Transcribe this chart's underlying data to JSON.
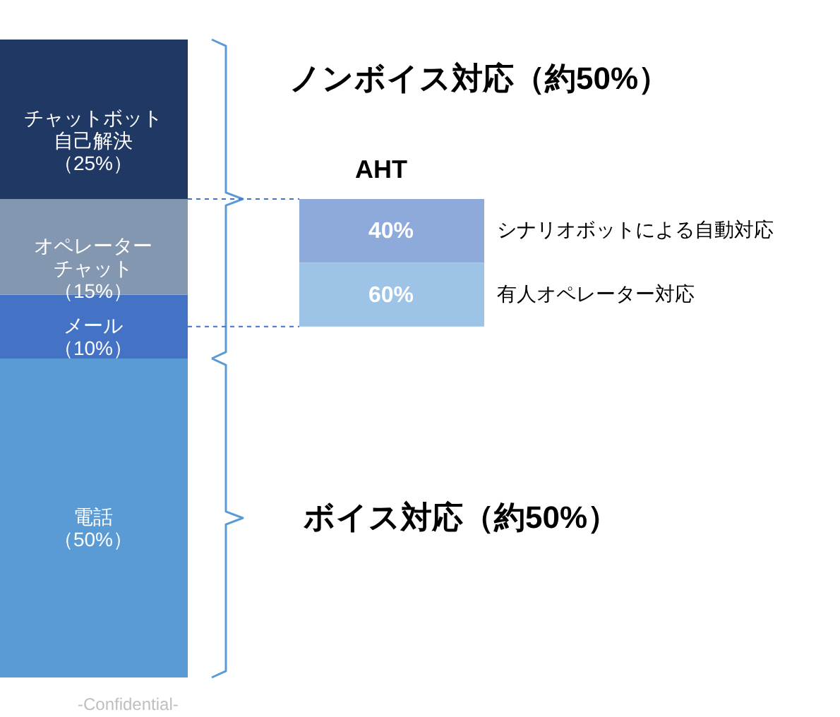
{
  "chart_data": [
    {
      "type": "bar",
      "stacked": true,
      "categories": [
        null
      ],
      "series": [
        {
          "name": "電話",
          "color": "#5b9bd5",
          "values": [
            50
          ],
          "value_labels": [
            "（50%）"
          ]
        },
        {
          "name": "メール",
          "color": "#4472c4",
          "values": [
            10
          ],
          "value_labels": [
            "（10%）"
          ]
        },
        {
          "name": "オペレーターチャット",
          "color": "#8497b0",
          "values": [
            15
          ],
          "value_labels": [
            "（15%）"
          ]
        },
        {
          "name": "チャットボット自己解決",
          "color": "#203864",
          "values": [
            25
          ],
          "value_labels": [
            "（25%）"
          ]
        }
      ],
      "annotations": [
        "ボイス対応（約50%）",
        "ノンボイス対応（約50%）",
        "-Confidential-"
      ]
    },
    {
      "type": "other",
      "title": "AHT",
      "categories": [
        "シナリオボットによる自動対応",
        "有人オペレーター対応"
      ],
      "value_labels": [
        "40%",
        "60%"
      ],
      "colors": [
        "#8eaadb",
        "#9dc3e6"
      ]
    }
  ]
}
